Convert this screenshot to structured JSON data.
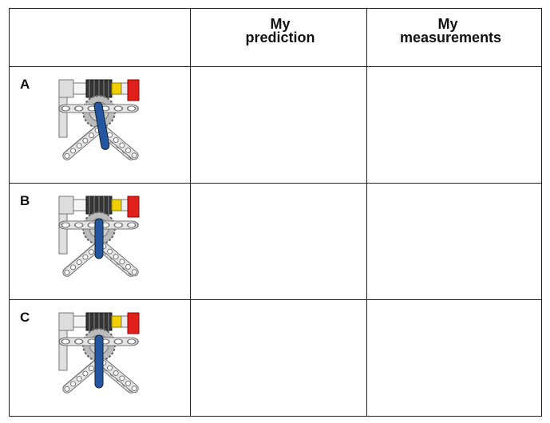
{
  "table": {
    "columns": [
      "My prediction",
      "My measurements"
    ],
    "rows": [
      {
        "label": "A"
      },
      {
        "label": "B"
      },
      {
        "label": "C"
      }
    ]
  }
}
